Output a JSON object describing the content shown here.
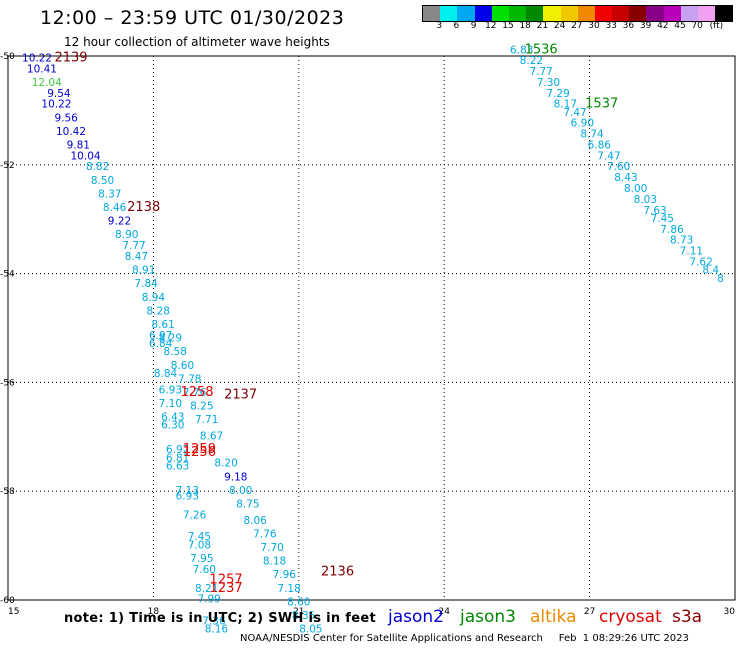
{
  "header": {
    "title": "12:00 – 23:59 UTC 01/30/2023",
    "subtitle": "12 hour collection of altimeter wave heights"
  },
  "colorbar": {
    "colors": [
      "#888888",
      "#00f0f0",
      "#00a8f0",
      "#0000e8",
      "#00e000",
      "#00b800",
      "#008800",
      "#f0f000",
      "#f0c800",
      "#f08800",
      "#f00000",
      "#c80000",
      "#880000",
      "#880088",
      "#b800b8",
      "#c8a0f0",
      "#f0a0f0",
      "#000000"
    ],
    "labels": [
      "3",
      "6",
      "9",
      "12",
      "15",
      "18",
      "21",
      "24",
      "27",
      "30",
      "33",
      "36",
      "39",
      "42",
      "45",
      "70",
      "(ft)"
    ]
  },
  "axes": {
    "x_ticks": [
      "15",
      "18",
      "21",
      "24",
      "27",
      "30"
    ],
    "y_ticks": [
      "-50",
      "-52",
      "-54",
      "-56",
      "-58",
      "-60"
    ]
  },
  "footer": {
    "note": "note:  1) Time is in UTC;  2) SWH is in feet",
    "missions": [
      {
        "name": "jason2",
        "color": "#0000d0"
      },
      {
        "name": "jason3",
        "color": "#008800"
      },
      {
        "name": "altika",
        "color": "#f08800"
      },
      {
        "name": "cryosat",
        "color": "#e00000"
      },
      {
        "name": "s3a",
        "color": "#880000"
      }
    ],
    "credit": "NOAA/NESDIS Center for Satellite Applications and Research     Feb  1 08:29:26 UTC 2023"
  },
  "map_data": {
    "time_labels": [
      {
        "text": "2139",
        "lon": 16.3,
        "lat": -50.1,
        "color": "#800000"
      },
      {
        "text": "2138",
        "lon": 17.8,
        "lat": -52.85,
        "color": "#800000"
      },
      {
        "text": "1258",
        "lon": 18.9,
        "lat": -56.25,
        "color": "#e00000"
      },
      {
        "text": "2137",
        "lon": 19.8,
        "lat": -56.3,
        "color": "#800000"
      },
      {
        "text": "1259",
        "lon": 18.95,
        "lat": -57.3,
        "color": "#e00000"
      },
      {
        "text": "1256",
        "lon": 18.95,
        "lat": -57.35,
        "color": "#e00000"
      },
      {
        "text": "2136",
        "lon": 21.8,
        "lat": -59.55,
        "color": "#800000"
      },
      {
        "text": "1257",
        "lon": 19.5,
        "lat": -59.7,
        "color": "#e00000"
      },
      {
        "text": "1237",
        "lon": 19.5,
        "lat": -59.85,
        "color": "#e00000"
      },
      {
        "text": "1536",
        "lon": 26.0,
        "lat": -49.95,
        "color": "#008800"
      },
      {
        "text": "1537",
        "lon": 27.25,
        "lat": -50.95,
        "color": "#008800"
      }
    ],
    "observations": [
      {
        "swh": "10.22",
        "lon": 15.6,
        "lat": -50.1,
        "color": "#0000d0"
      },
      {
        "swh": "10.41",
        "lon": 15.7,
        "lat": -50.3,
        "color": "#0000d0"
      },
      {
        "swh": "12.04",
        "lon": 15.8,
        "lat": -50.55,
        "color": "#40c840"
      },
      {
        "swh": "9.54",
        "lon": 16.05,
        "lat": -50.75,
        "color": "#0000d0"
      },
      {
        "swh": "10.22",
        "lon": 16.0,
        "lat": -50.95,
        "color": "#0000d0"
      },
      {
        "swh": "9.56",
        "lon": 16.2,
        "lat": -51.2,
        "color": "#0000d0"
      },
      {
        "swh": "10.42",
        "lon": 16.3,
        "lat": -51.45,
        "color": "#0000d0"
      },
      {
        "swh": "9.81",
        "lon": 16.45,
        "lat": -51.7,
        "color": "#0000d0"
      },
      {
        "swh": "10.04",
        "lon": 16.6,
        "lat": -51.9,
        "color": "#0000d0"
      },
      {
        "swh": "8.82",
        "lon": 16.85,
        "lat": -52.1,
        "color": "#00a8e0"
      },
      {
        "swh": "8.50",
        "lon": 16.95,
        "lat": -52.35,
        "color": "#00a8e0"
      },
      {
        "swh": "8.37",
        "lon": 17.1,
        "lat": -52.6,
        "color": "#00a8e0"
      },
      {
        "swh": "8.46",
        "lon": 17.2,
        "lat": -52.85,
        "color": "#00a8e0"
      },
      {
        "swh": "9.22",
        "lon": 17.3,
        "lat": -53.1,
        "color": "#0000d0"
      },
      {
        "swh": "8.90",
        "lon": 17.45,
        "lat": -53.35,
        "color": "#00a8e0"
      },
      {
        "swh": "7.77",
        "lon": 17.6,
        "lat": -53.55,
        "color": "#00a8e0"
      },
      {
        "swh": "8.47",
        "lon": 17.65,
        "lat": -53.75,
        "color": "#00a8e0"
      },
      {
        "swh": "8.91",
        "lon": 17.8,
        "lat": -54.0,
        "color": "#00a8e0"
      },
      {
        "swh": "7.84",
        "lon": 17.85,
        "lat": -54.25,
        "color": "#00a8e0"
      },
      {
        "swh": "8.94",
        "lon": 18.0,
        "lat": -54.5,
        "color": "#00a8e0"
      },
      {
        "swh": "8.28",
        "lon": 18.1,
        "lat": -54.75,
        "color": "#00a8e0"
      },
      {
        "swh": "8.61",
        "lon": 18.2,
        "lat": -55.0,
        "color": "#00a8e0"
      },
      {
        "swh": "6.97",
        "lon": 18.15,
        "lat": -55.2,
        "color": "#00a8e0"
      },
      {
        "swh": "8.29",
        "lon": 18.35,
        "lat": -55.25,
        "color": "#00a8e0"
      },
      {
        "swh": "6.84",
        "lon": 18.15,
        "lat": -55.35,
        "color": "#00a8e0"
      },
      {
        "swh": "8.58",
        "lon": 18.45,
        "lat": -55.5,
        "color": "#00a8e0"
      },
      {
        "swh": "8.60",
        "lon": 18.6,
        "lat": -55.75,
        "color": "#00a8e0"
      },
      {
        "swh": "8.84",
        "lon": 18.25,
        "lat": -55.9,
        "color": "#00a8e0"
      },
      {
        "swh": "7.78",
        "lon": 18.75,
        "lat": -56.0,
        "color": "#00a8e0"
      },
      {
        "swh": "6.93",
        "lon": 18.35,
        "lat": -56.2,
        "color": "#00a8e0"
      },
      {
        "swh": "7.76",
        "lon": 18.85,
        "lat": -56.25,
        "color": "#00a8e0"
      },
      {
        "swh": "7.10",
        "lon": 18.35,
        "lat": -56.45,
        "color": "#00a8e0"
      },
      {
        "swh": "8.25",
        "lon": 19.0,
        "lat": -56.5,
        "color": "#00a8e0"
      },
      {
        "swh": "6.43",
        "lon": 18.4,
        "lat": -56.7,
        "color": "#00a8e0"
      },
      {
        "swh": "7.71",
        "lon": 19.1,
        "lat": -56.75,
        "color": "#00a8e0"
      },
      {
        "swh": "6.30",
        "lon": 18.4,
        "lat": -56.85,
        "color": "#00a8e0"
      },
      {
        "swh": "8.67",
        "lon": 19.2,
        "lat": -57.05,
        "color": "#00a8e0"
      },
      {
        "swh": "6.92",
        "lon": 18.5,
        "lat": -57.3,
        "color": "#00a8e0"
      },
      {
        "swh": "6.81",
        "lon": 18.5,
        "lat": -57.45,
        "color": "#00a8e0"
      },
      {
        "swh": "8.20",
        "lon": 19.5,
        "lat": -57.55,
        "color": "#00a8e0"
      },
      {
        "swh": "6.63",
        "lon": 18.5,
        "lat": -57.6,
        "color": "#00a8e0"
      },
      {
        "swh": "9.18",
        "lon": 19.7,
        "lat": -57.8,
        "color": "#0000d0"
      },
      {
        "swh": "7.13",
        "lon": 18.7,
        "lat": -58.05,
        "color": "#00a8e0"
      },
      {
        "swh": "8.00",
        "lon": 19.8,
        "lat": -58.05,
        "color": "#00a8e0"
      },
      {
        "swh": "6.93",
        "lon": 18.7,
        "lat": -58.15,
        "color": "#00a8e0"
      },
      {
        "swh": "8.75",
        "lon": 19.95,
        "lat": -58.3,
        "color": "#00a8e0"
      },
      {
        "swh": "7.26",
        "lon": 18.85,
        "lat": -58.5,
        "color": "#00a8e0"
      },
      {
        "swh": "8.06",
        "lon": 20.1,
        "lat": -58.6,
        "color": "#00a8e0"
      },
      {
        "swh": "7.45",
        "lon": 18.95,
        "lat": -58.9,
        "color": "#00a8e0"
      },
      {
        "swh": "7.76",
        "lon": 20.3,
        "lat": -58.85,
        "color": "#00a8e0"
      },
      {
        "swh": "7.08",
        "lon": 18.95,
        "lat": -59.05,
        "color": "#00a8e0"
      },
      {
        "swh": "7.70",
        "lon": 20.45,
        "lat": -59.1,
        "color": "#00a8e0"
      },
      {
        "swh": "7.95",
        "lon": 19.0,
        "lat": -59.3,
        "color": "#00a8e0"
      },
      {
        "swh": "8.18",
        "lon": 20.5,
        "lat": -59.35,
        "color": "#00a8e0"
      },
      {
        "swh": "7.60",
        "lon": 19.05,
        "lat": -59.5,
        "color": "#00a8e0"
      },
      {
        "swh": "7.96",
        "lon": 20.7,
        "lat": -59.6,
        "color": "#00a8e0"
      },
      {
        "swh": "8.21",
        "lon": 19.1,
        "lat": -59.85,
        "color": "#00a8e0"
      },
      {
        "swh": "7.18",
        "lon": 20.8,
        "lat": -59.85,
        "color": "#00a8e0"
      },
      {
        "swh": "7.99",
        "lon": 19.15,
        "lat": -60.05,
        "color": "#00a8e0"
      },
      {
        "swh": "8.60",
        "lon": 21.0,
        "lat": -60.1,
        "color": "#00a8e0"
      },
      {
        "swh": "8.35",
        "lon": 21.1,
        "lat": -60.35,
        "color": "#00a8e0"
      },
      {
        "swh": "7.36",
        "lon": 19.25,
        "lat": -60.45,
        "color": "#00a8e0"
      },
      {
        "swh": "8.16",
        "lon": 19.3,
        "lat": -60.6,
        "color": "#00a8e0"
      },
      {
        "swh": "8.05",
        "lon": 21.25,
        "lat": -60.6,
        "color": "#00a8e0"
      },
      {
        "swh": "6.83",
        "lon": 25.6,
        "lat": -49.95,
        "color": "#00a8e0"
      },
      {
        "swh": "8.22",
        "lon": 25.8,
        "lat": -50.15,
        "color": "#00a8e0"
      },
      {
        "swh": "7.77",
        "lon": 26.0,
        "lat": -50.35,
        "color": "#00a8e0"
      },
      {
        "swh": "7.30",
        "lon": 26.15,
        "lat": -50.55,
        "color": "#00a8e0"
      },
      {
        "swh": "7.29",
        "lon": 26.35,
        "lat": -50.75,
        "color": "#00a8e0"
      },
      {
        "swh": "8.17",
        "lon": 26.5,
        "lat": -50.95,
        "color": "#00a8e0"
      },
      {
        "swh": "7.47",
        "lon": 26.7,
        "lat": -51.1,
        "color": "#00a8e0"
      },
      {
        "swh": "6.90",
        "lon": 26.85,
        "lat": -51.3,
        "color": "#00a8e0"
      },
      {
        "swh": "8.74",
        "lon": 27.05,
        "lat": -51.5,
        "color": "#00a8e0"
      },
      {
        "swh": "6.86",
        "lon": 27.2,
        "lat": -51.7,
        "color": "#00a8e0"
      },
      {
        "swh": "7.47",
        "lon": 27.4,
        "lat": -51.9,
        "color": "#00a8e0"
      },
      {
        "swh": "7.60",
        "lon": 27.6,
        "lat": -52.1,
        "color": "#00a8e0"
      },
      {
        "swh": "8.43",
        "lon": 27.75,
        "lat": -52.3,
        "color": "#00a8e0"
      },
      {
        "swh": "8.00",
        "lon": 27.95,
        "lat": -52.5,
        "color": "#00a8e0"
      },
      {
        "swh": "8.03",
        "lon": 28.15,
        "lat": -52.7,
        "color": "#00a8e0"
      },
      {
        "swh": "7.63",
        "lon": 28.35,
        "lat": -52.9,
        "color": "#00a8e0"
      },
      {
        "swh": "7.45",
        "lon": 28.5,
        "lat": -53.05,
        "color": "#00a8e0"
      },
      {
        "swh": "7.86",
        "lon": 28.7,
        "lat": -53.25,
        "color": "#00a8e0"
      },
      {
        "swh": "8.73",
        "lon": 28.9,
        "lat": -53.45,
        "color": "#00a8e0"
      },
      {
        "swh": "7.11",
        "lon": 29.1,
        "lat": -53.65,
        "color": "#00a8e0"
      },
      {
        "swh": "7.62",
        "lon": 29.3,
        "lat": -53.85,
        "color": "#00a8e0"
      },
      {
        "swh": "8.4",
        "lon": 29.5,
        "lat": -54.0,
        "color": "#00a8e0"
      },
      {
        "swh": "8",
        "lon": 29.7,
        "lat": -54.15,
        "color": "#00a8e0"
      }
    ]
  }
}
